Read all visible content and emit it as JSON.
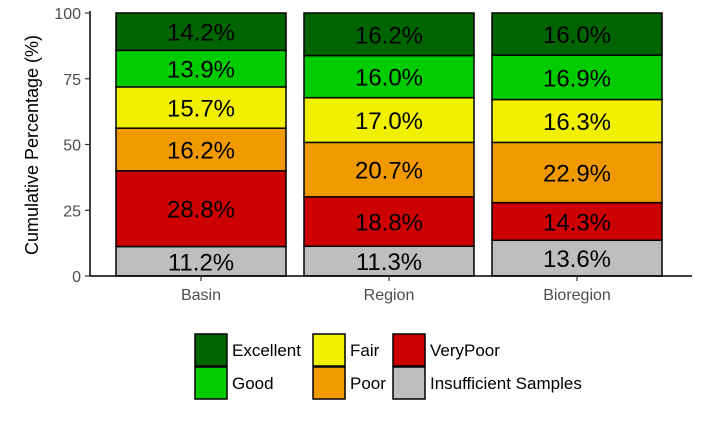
{
  "chart_data": {
    "type": "bar",
    "stacked": true,
    "ylabel": "Cumulative Percentage (%)",
    "xlabel": "",
    "ylim": [
      0,
      100
    ],
    "yticks": [
      "0",
      "25",
      "50",
      "75",
      "100"
    ],
    "categories": [
      "Basin",
      "Region",
      "Bioregion"
    ],
    "series": [
      {
        "name": "Insufficient Samples",
        "color": "#bebebe",
        "values": [
          11.2,
          11.3,
          13.6
        ],
        "labels": [
          "11.2%",
          "11.3%",
          "13.6%"
        ]
      },
      {
        "name": "VeryPoor",
        "color": "#cc0000",
        "values": [
          28.8,
          18.8,
          14.3
        ],
        "labels": [
          "28.8%",
          "18.8%",
          "14.3%"
        ]
      },
      {
        "name": "Poor",
        "color": "#f09a00",
        "values": [
          16.2,
          20.7,
          22.9
        ],
        "labels": [
          "16.2%",
          "20.7%",
          "22.9%"
        ]
      },
      {
        "name": "Fair",
        "color": "#f0f000",
        "values": [
          15.7,
          17.0,
          16.3
        ],
        "labels": [
          "15.7%",
          "17.0%",
          "16.3%"
        ]
      },
      {
        "name": "Good",
        "color": "#00cc00",
        "values": [
          13.9,
          16.0,
          16.9
        ],
        "labels": [
          "13.9%",
          "16.0%",
          "16.9%"
        ]
      },
      {
        "name": "Excellent",
        "color": "#006400",
        "values": [
          14.2,
          16.2,
          16.0
        ],
        "labels": [
          "14.2%",
          "16.2%",
          "16.0%"
        ]
      }
    ],
    "legend": {
      "placement": "bottom",
      "order": [
        "Excellent",
        "Good",
        "Fair",
        "Poor",
        "VeryPoor",
        "Insufficient Samples"
      ]
    },
    "grid": false
  }
}
